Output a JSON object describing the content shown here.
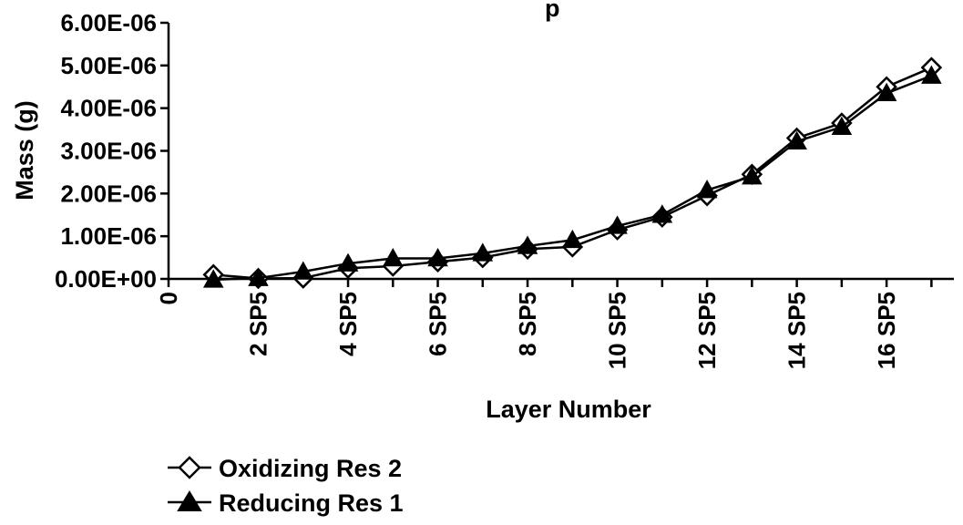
{
  "chart_data": {
    "type": "line",
    "title": "",
    "title_fragment": "p",
    "xlabel": "Layer Number",
    "ylabel": "Mass (g)",
    "ylim": [
      0,
      6e-06
    ],
    "y_tick_labels": [
      "0.00E+00",
      "1.00E-06",
      "2.00E-06",
      "3.00E-06",
      "4.00E-06",
      "5.00E-06",
      "6.00E-06"
    ],
    "x_tick_labels": [
      "0",
      "2 SP5",
      "4 SP5",
      "6 SP5",
      "8 SP5",
      "10 SP5",
      "12 SP5",
      "14 SP5",
      "16 SP5"
    ],
    "grid": false,
    "legend_position": "bottom-left",
    "x": [
      1,
      2,
      3,
      4,
      5,
      6,
      7,
      8,
      9,
      10,
      11,
      12,
      13,
      14,
      15,
      16,
      17
    ],
    "series": [
      {
        "name": "Oxidizing Res 2",
        "marker": "diamond-open",
        "values": [
          1e-07,
          1e-08,
          2e-08,
          2.5e-07,
          3e-07,
          4e-07,
          5e-07,
          7e-07,
          7.5e-07,
          1.15e-06,
          1.45e-06,
          1.95e-06,
          2.45e-06,
          3.3e-06,
          3.65e-06,
          4.5e-06,
          4.95e-06
        ]
      },
      {
        "name": "Reducing Res 1",
        "marker": "triangle-filled",
        "values": [
          -2e-08,
          2e-08,
          1.7e-07,
          3.6e-07,
          4.8e-07,
          4.8e-07,
          6e-07,
          7.7e-07,
          9.1e-07,
          1.24e-06,
          1.5e-06,
          2.08e-06,
          2.4e-06,
          3.22e-06,
          3.56e-06,
          4.35e-06,
          4.76e-06
        ]
      }
    ],
    "colors": {
      "line": "#000000",
      "background": "#ffffff"
    }
  }
}
